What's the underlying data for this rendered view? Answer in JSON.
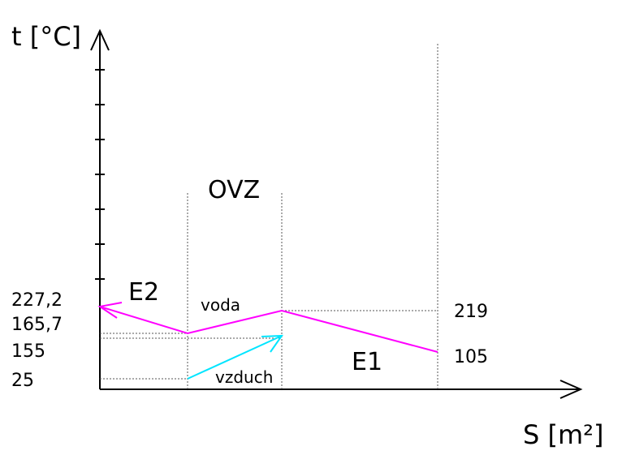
{
  "axes": {
    "y_label": "t  [°C]",
    "x_label": "S  [m²]"
  },
  "zones": {
    "ovz": "OVZ",
    "e1": "E1",
    "e2": "E2"
  },
  "streams": {
    "water": {
      "label": "voda",
      "color": "#ff00ff"
    },
    "air": {
      "label": "vzduch",
      "color": "#00e5ff"
    }
  },
  "temperatures_left": [
    "227,2",
    "165,7",
    "155",
    "25"
  ],
  "temperatures_right": [
    "219",
    "105"
  ]
}
